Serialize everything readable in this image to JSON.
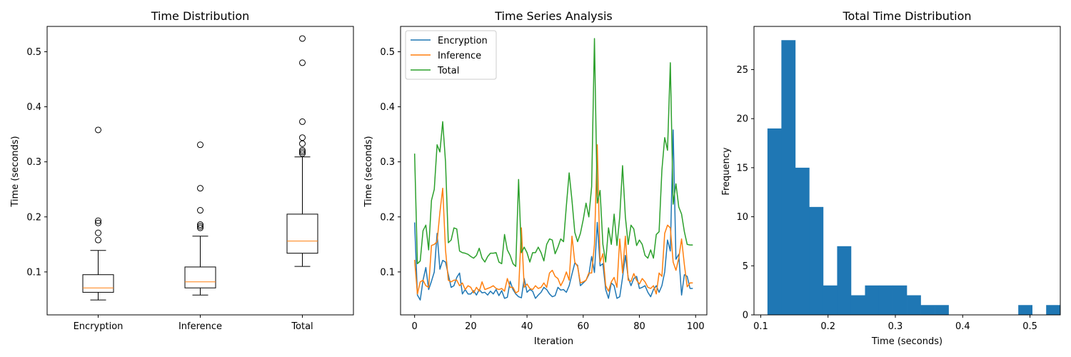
{
  "chart_data": [
    {
      "type": "box",
      "title": "Time Distribution",
      "xlabel": "",
      "ylabel": "Time (seconds)",
      "categories": [
        "Encryption",
        "Inference",
        "Total"
      ],
      "ylim": [
        0.022,
        0.546
      ],
      "yticks": [
        0.1,
        0.2,
        0.3,
        0.4,
        0.5
      ],
      "median_color": "#ff7f0e",
      "boxes": [
        {
          "category": "Encryption",
          "whisker_low": 0.049,
          "q1": 0.063,
          "median": 0.071,
          "q3": 0.095,
          "whisker_high": 0.139,
          "outliers": [
            0.358,
            0.193,
            0.189,
            0.171,
            0.158
          ]
        },
        {
          "category": "Inference",
          "whisker_low": 0.058,
          "q1": 0.071,
          "median": 0.082,
          "q3": 0.109,
          "whisker_high": 0.165,
          "outliers": [
            0.331,
            0.252,
            0.212,
            0.186,
            0.183,
            0.18
          ]
        },
        {
          "category": "Total",
          "whisker_low": 0.11,
          "q1": 0.134,
          "median": 0.156,
          "q3": 0.205,
          "whisker_high": 0.309,
          "outliers": [
            0.524,
            0.48,
            0.373,
            0.344,
            0.333,
            0.321,
            0.318,
            0.315
          ]
        }
      ]
    },
    {
      "type": "line",
      "title": "Time Series Analysis",
      "xlabel": "Iteration",
      "ylabel": "Time (seconds)",
      "xlim": [
        -5,
        104
      ],
      "ylim": [
        0.022,
        0.546
      ],
      "xticks": [
        0,
        20,
        40,
        60,
        80,
        100
      ],
      "yticks": [
        0.1,
        0.2,
        0.3,
        0.4,
        0.5
      ],
      "grid": false,
      "legend": "top-left",
      "x": [
        0,
        1,
        2,
        3,
        4,
        5,
        6,
        7,
        8,
        9,
        10,
        11,
        12,
        13,
        14,
        15,
        16,
        17,
        18,
        19,
        20,
        21,
        22,
        23,
        24,
        25,
        26,
        27,
        28,
        29,
        30,
        31,
        32,
        33,
        34,
        35,
        36,
        37,
        38,
        39,
        40,
        41,
        42,
        43,
        44,
        45,
        46,
        47,
        48,
        49,
        50,
        51,
        52,
        53,
        54,
        55,
        56,
        57,
        58,
        59,
        60,
        61,
        62,
        63,
        64,
        65,
        66,
        67,
        68,
        69,
        70,
        71,
        72,
        73,
        74,
        75,
        76,
        77,
        78,
        79,
        80,
        81,
        82,
        83,
        84,
        85,
        86,
        87,
        88,
        89,
        90,
        91,
        92,
        93,
        94,
        95,
        96,
        97,
        98,
        99
      ],
      "series": [
        {
          "name": "Encryption",
          "color": "#1f77b4",
          "values": [
            0.19,
            0.058,
            0.049,
            0.085,
            0.108,
            0.068,
            0.083,
            0.1,
            0.17,
            0.105,
            0.121,
            0.118,
            0.095,
            0.072,
            0.075,
            0.09,
            0.098,
            0.06,
            0.068,
            0.06,
            0.06,
            0.066,
            0.058,
            0.068,
            0.062,
            0.063,
            0.058,
            0.065,
            0.06,
            0.068,
            0.057,
            0.066,
            0.052,
            0.054,
            0.083,
            0.068,
            0.06,
            0.055,
            0.053,
            0.088,
            0.063,
            0.068,
            0.065,
            0.052,
            0.058,
            0.063,
            0.072,
            0.068,
            0.06,
            0.055,
            0.057,
            0.072,
            0.067,
            0.068,
            0.063,
            0.075,
            0.096,
            0.116,
            0.112,
            0.075,
            0.08,
            0.085,
            0.095,
            0.128,
            0.099,
            0.19,
            0.111,
            0.115,
            0.068,
            0.052,
            0.08,
            0.075,
            0.052,
            0.055,
            0.09,
            0.13,
            0.09,
            0.075,
            0.088,
            0.092,
            0.07,
            0.072,
            0.075,
            0.063,
            0.055,
            0.068,
            0.075,
            0.063,
            0.075,
            0.1,
            0.158,
            0.138,
            0.358,
            0.123,
            0.132,
            0.058,
            0.095,
            0.092,
            0.07,
            0.07
          ]
        },
        {
          "name": "Inference",
          "color": "#ff7f0e",
          "values": [
            0.122,
            0.06,
            0.082,
            0.085,
            0.075,
            0.072,
            0.148,
            0.15,
            0.155,
            0.208,
            0.252,
            0.14,
            0.085,
            0.082,
            0.085,
            0.085,
            0.075,
            0.08,
            0.068,
            0.075,
            0.072,
            0.062,
            0.072,
            0.065,
            0.082,
            0.068,
            0.07,
            0.072,
            0.075,
            0.07,
            0.068,
            0.07,
            0.065,
            0.088,
            0.072,
            0.072,
            0.062,
            0.065,
            0.18,
            0.072,
            0.078,
            0.07,
            0.068,
            0.075,
            0.07,
            0.072,
            0.08,
            0.072,
            0.098,
            0.103,
            0.092,
            0.088,
            0.075,
            0.085,
            0.1,
            0.085,
            0.165,
            0.118,
            0.11,
            0.08,
            0.082,
            0.085,
            0.098,
            0.098,
            0.15,
            0.331,
            0.118,
            0.133,
            0.075,
            0.065,
            0.082,
            0.09,
            0.072,
            0.16,
            0.098,
            0.165,
            0.085,
            0.083,
            0.097,
            0.085,
            0.078,
            0.088,
            0.082,
            0.072,
            0.07,
            0.075,
            0.06,
            0.098,
            0.092,
            0.17,
            0.185,
            0.18,
            0.118,
            0.103,
            0.125,
            0.16,
            0.113,
            0.073,
            0.08,
            0.08
          ]
        },
        {
          "name": "Total",
          "color": "#2ca02c",
          "values": [
            0.315,
            0.115,
            0.12,
            0.175,
            0.185,
            0.14,
            0.23,
            0.25,
            0.331,
            0.318,
            0.373,
            0.3,
            0.153,
            0.158,
            0.18,
            0.178,
            0.138,
            0.135,
            0.134,
            0.132,
            0.128,
            0.125,
            0.13,
            0.143,
            0.125,
            0.118,
            0.128,
            0.134,
            0.134,
            0.135,
            0.118,
            0.115,
            0.168,
            0.14,
            0.13,
            0.115,
            0.11,
            0.268,
            0.135,
            0.145,
            0.135,
            0.118,
            0.135,
            0.135,
            0.145,
            0.135,
            0.12,
            0.15,
            0.16,
            0.158,
            0.133,
            0.145,
            0.16,
            0.155,
            0.22,
            0.28,
            0.23,
            0.172,
            0.155,
            0.17,
            0.195,
            0.225,
            0.2,
            0.255,
            0.524,
            0.225,
            0.248,
            0.15,
            0.118,
            0.18,
            0.15,
            0.205,
            0.148,
            0.2,
            0.293,
            0.2,
            0.15,
            0.185,
            0.178,
            0.148,
            0.158,
            0.15,
            0.13,
            0.125,
            0.14,
            0.125,
            0.168,
            0.173,
            0.285,
            0.344,
            0.321,
            0.48,
            0.223,
            0.26,
            0.218,
            0.205,
            0.173,
            0.15,
            0.149,
            0.149
          ]
        }
      ]
    },
    {
      "type": "histogram",
      "title": "Total Time Distribution",
      "xlabel": "Time (seconds)",
      "ylabel": "Frequency",
      "xlim": [
        0.09,
        0.545
      ],
      "ylim": [
        0,
        29.4
      ],
      "xticks": [
        0.1,
        0.2,
        0.3,
        0.4,
        0.5
      ],
      "yticks": [
        0,
        5,
        10,
        15,
        20,
        25
      ],
      "bar_color": "#1f77b4",
      "bin_start": 0.11,
      "bin_width": 0.0207,
      "counts": [
        19,
        28,
        15,
        11,
        3,
        7,
        2,
        3,
        3,
        3,
        2,
        1,
        1,
        0,
        0,
        0,
        0,
        0,
        1,
        0,
        1
      ]
    }
  ]
}
